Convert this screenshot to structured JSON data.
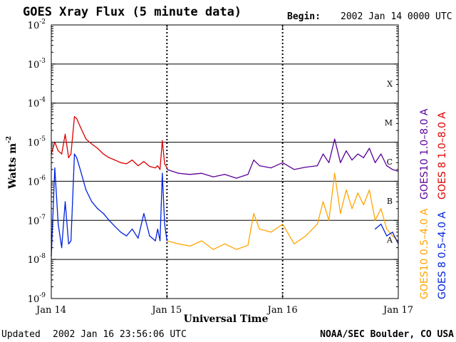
{
  "header": {
    "title": "GOES Xray Flux (5 minute data)",
    "begin_label": "Begin:",
    "begin_value": "2002 Jan 14 0000 UTC"
  },
  "footer": {
    "updated_label": "Updated",
    "updated_value": "2002 Jan 16 23:56:06 UTC",
    "credit": "NOAA/SEC Boulder, CO USA"
  },
  "colors": {
    "goes8_long": "#dd0000",
    "goes10_long": "#5a0099",
    "goes10_short": "#ffa500",
    "goes8_short": "#0022dd"
  },
  "chart_data": {
    "type": "line",
    "title": "GOES Xray Flux (5 minute data)",
    "xlabel": "Universal Time",
    "ylabel": "Watts m",
    "ylabel_exponent": "-2",
    "yscale": "log",
    "ylim": [
      1e-09,
      0.01
    ],
    "y_ticks": [
      {
        "base": "10",
        "exp": "-2",
        "value": 0.01
      },
      {
        "base": "10",
        "exp": "-3",
        "value": 0.001
      },
      {
        "base": "10",
        "exp": "-4",
        "value": 0.0001
      },
      {
        "base": "10",
        "exp": "-5",
        "value": 1e-05
      },
      {
        "base": "10",
        "exp": "-6",
        "value": 1e-06
      },
      {
        "base": "10",
        "exp": "-7",
        "value": 1e-07
      },
      {
        "base": "10",
        "exp": "-8",
        "value": 1e-08
      },
      {
        "base": "10",
        "exp": "-9",
        "value": 1e-09
      }
    ],
    "x_ticks": [
      "Jan 14",
      "Jan 15",
      "Jan 16",
      "Jan 17"
    ],
    "flare_classes": [
      {
        "label": "X",
        "value": 0.000316
      },
      {
        "label": "M",
        "value": 3.16e-05
      },
      {
        "label": "C",
        "value": 3.16e-06
      },
      {
        "label": "B",
        "value": 3.16e-07
      },
      {
        "label": "A",
        "value": 3.16e-08
      }
    ],
    "grid": true,
    "legend": [
      {
        "label": "GOES10 1.0–8.0 A",
        "color": "#5a0099"
      },
      {
        "label": "GOES 8  1.0–8.0 A",
        "color": "#dd0000"
      },
      {
        "label": "GOES10 0.5–4.0 A",
        "color": "#ffa500"
      },
      {
        "label": "GOES 8  0.5–4.0 A",
        "color": "#0022dd"
      }
    ],
    "series": [
      {
        "name": "GOES 8 1.0–8.0 A",
        "color": "#dd0000",
        "x": [
          0,
          0.03,
          0.06,
          0.09,
          0.12,
          0.15,
          0.17,
          0.2,
          0.22,
          0.25,
          0.3,
          0.35,
          0.4,
          0.45,
          0.5,
          0.55,
          0.6,
          0.65,
          0.7,
          0.75,
          0.8,
          0.85,
          0.9,
          0.92,
          0.94,
          0.96,
          0.98,
          1.0
        ],
        "values": [
          5e-06,
          1e-05,
          6e-06,
          5e-06,
          1.6e-05,
          4e-06,
          5e-06,
          4.5e-05,
          4e-05,
          2.5e-05,
          1.2e-05,
          9e-06,
          7e-06,
          5e-06,
          4e-06,
          3.5e-06,
          3e-06,
          2.8e-06,
          3.5e-06,
          2.5e-06,
          3.2e-06,
          2.4e-06,
          2.2e-06,
          2.5e-06,
          2e-06,
          1.1e-05,
          2.8e-06,
          2.2e-06
        ]
      },
      {
        "name": "GOES10 1.0–8.0 A",
        "color": "#5a0099",
        "x": [
          1.0,
          1.1,
          1.2,
          1.3,
          1.4,
          1.5,
          1.6,
          1.7,
          1.75,
          1.8,
          1.9,
          2.0,
          2.1,
          2.2,
          2.3,
          2.35,
          2.4,
          2.45,
          2.5,
          2.55,
          2.6,
          2.65,
          2.7,
          2.75,
          2.8,
          2.85,
          2.9,
          2.95,
          3.0
        ],
        "values": [
          2e-06,
          1.6e-06,
          1.5e-06,
          1.6e-06,
          1.3e-06,
          1.5e-06,
          1.2e-06,
          1.5e-06,
          3.5e-06,
          2.5e-06,
          2.2e-06,
          3e-06,
          2e-06,
          2.3e-06,
          2.5e-06,
          5e-06,
          3e-06,
          1.2e-05,
          3e-06,
          6e-06,
          3.5e-06,
          5e-06,
          4e-06,
          7e-06,
          3e-06,
          5e-06,
          2.5e-06,
          2e-06,
          1.8e-06
        ]
      },
      {
        "name": "GOES10 0.5–4.0 A",
        "color": "#ffa500",
        "x": [
          1.0,
          1.1,
          1.2,
          1.3,
          1.4,
          1.5,
          1.6,
          1.7,
          1.75,
          1.8,
          1.9,
          2.0,
          2.1,
          2.2,
          2.3,
          2.35,
          2.4,
          2.45,
          2.5,
          2.55,
          2.6,
          2.65,
          2.7,
          2.75,
          2.8,
          2.85,
          2.9,
          2.95,
          3.0
        ],
        "values": [
          3e-08,
          2.5e-08,
          2.2e-08,
          3e-08,
          1.8e-08,
          2.5e-08,
          1.8e-08,
          2.3e-08,
          1.5e-07,
          6e-08,
          5e-08,
          8e-08,
          2.5e-08,
          4e-08,
          8e-08,
          3e-07,
          1e-07,
          1.6e-06,
          1.5e-07,
          6e-07,
          2e-07,
          5e-07,
          2.5e-07,
          6e-07,
          1e-07,
          2e-07,
          6e-08,
          4e-08,
          3e-08
        ]
      },
      {
        "name": "GOES 8 0.5–4.0 A",
        "color": "#0022dd",
        "x": [
          0,
          0.03,
          0.06,
          0.09,
          0.12,
          0.15,
          0.17,
          0.2,
          0.22,
          0.25,
          0.3,
          0.35,
          0.4,
          0.45,
          0.5,
          0.55,
          0.6,
          0.65,
          0.7,
          0.75,
          0.8,
          0.85,
          0.9,
          0.92,
          0.94,
          0.96,
          0.98,
          1.0,
          2.8,
          2.85,
          2.9,
          2.95,
          3.0
        ],
        "values": [
          1.2e-08,
          2.2e-06,
          8e-08,
          2e-08,
          3e-07,
          2.5e-08,
          3e-08,
          5e-06,
          4e-06,
          2e-06,
          6e-07,
          3e-07,
          2e-07,
          1.5e-07,
          1e-07,
          7e-08,
          5e-08,
          4e-08,
          6e-08,
          3.5e-08,
          1.5e-07,
          4e-08,
          3e-08,
          6e-08,
          3e-08,
          1.6e-06,
          8e-08,
          3e-08,
          6e-08,
          8e-08,
          4e-08,
          5e-08,
          2.5e-08
        ]
      }
    ]
  }
}
